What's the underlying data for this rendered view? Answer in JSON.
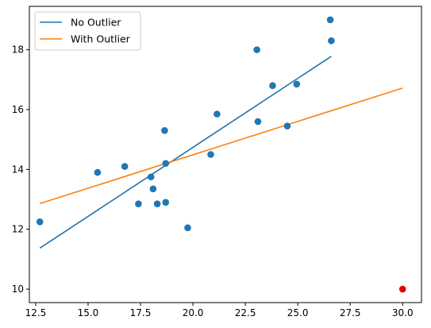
{
  "chart_data": {
    "type": "scatter",
    "title": "",
    "xlabel": "",
    "ylabel": "",
    "xlim": [
      12.2,
      30.9
    ],
    "ylim": [
      9.55,
      19.45
    ],
    "x_ticks": [
      12.5,
      15.0,
      17.5,
      20.0,
      22.5,
      25.0,
      27.5,
      30.0
    ],
    "x_tick_labels": [
      "12.5",
      "15.0",
      "17.5",
      "20.0",
      "22.5",
      "25.0",
      "27.5",
      "30.0"
    ],
    "y_ticks": [
      10,
      12,
      14,
      16,
      18
    ],
    "y_tick_labels": [
      "10",
      "12",
      "14",
      "16",
      "18"
    ],
    "grid": false,
    "legend_position": "top-left",
    "points": [
      {
        "x": 12.7,
        "y": 12.25
      },
      {
        "x": 15.45,
        "y": 13.9
      },
      {
        "x": 16.75,
        "y": 14.1
      },
      {
        "x": 17.4,
        "y": 12.85
      },
      {
        "x": 18.0,
        "y": 13.75
      },
      {
        "x": 18.1,
        "y": 13.35
      },
      {
        "x": 18.3,
        "y": 12.85
      },
      {
        "x": 18.65,
        "y": 15.3
      },
      {
        "x": 18.7,
        "y": 14.2
      },
      {
        "x": 18.7,
        "y": 12.9
      },
      {
        "x": 19.75,
        "y": 12.05
      },
      {
        "x": 20.85,
        "y": 14.5
      },
      {
        "x": 21.15,
        "y": 15.85
      },
      {
        "x": 23.05,
        "y": 18.0
      },
      {
        "x": 23.1,
        "y": 15.6
      },
      {
        "x": 23.8,
        "y": 16.8
      },
      {
        "x": 24.5,
        "y": 15.45
      },
      {
        "x": 24.95,
        "y": 16.85
      },
      {
        "x": 26.55,
        "y": 19.0
      },
      {
        "x": 26.6,
        "y": 18.3
      }
    ],
    "outlier": {
      "x": 30.0,
      "y": 10.0
    },
    "series": [
      {
        "name": "No Outlier",
        "x": [
          12.7,
          26.6
        ],
        "y": [
          11.37,
          17.78
        ]
      },
      {
        "name": "With Outlier",
        "x": [
          12.7,
          30.0
        ],
        "y": [
          12.86,
          16.72
        ]
      }
    ],
    "colors": {
      "points": "#1f77b4",
      "outlier": "#e00000",
      "no_outlier_line": "#1f77b4",
      "with_outlier_line": "#ff7f0e"
    }
  }
}
